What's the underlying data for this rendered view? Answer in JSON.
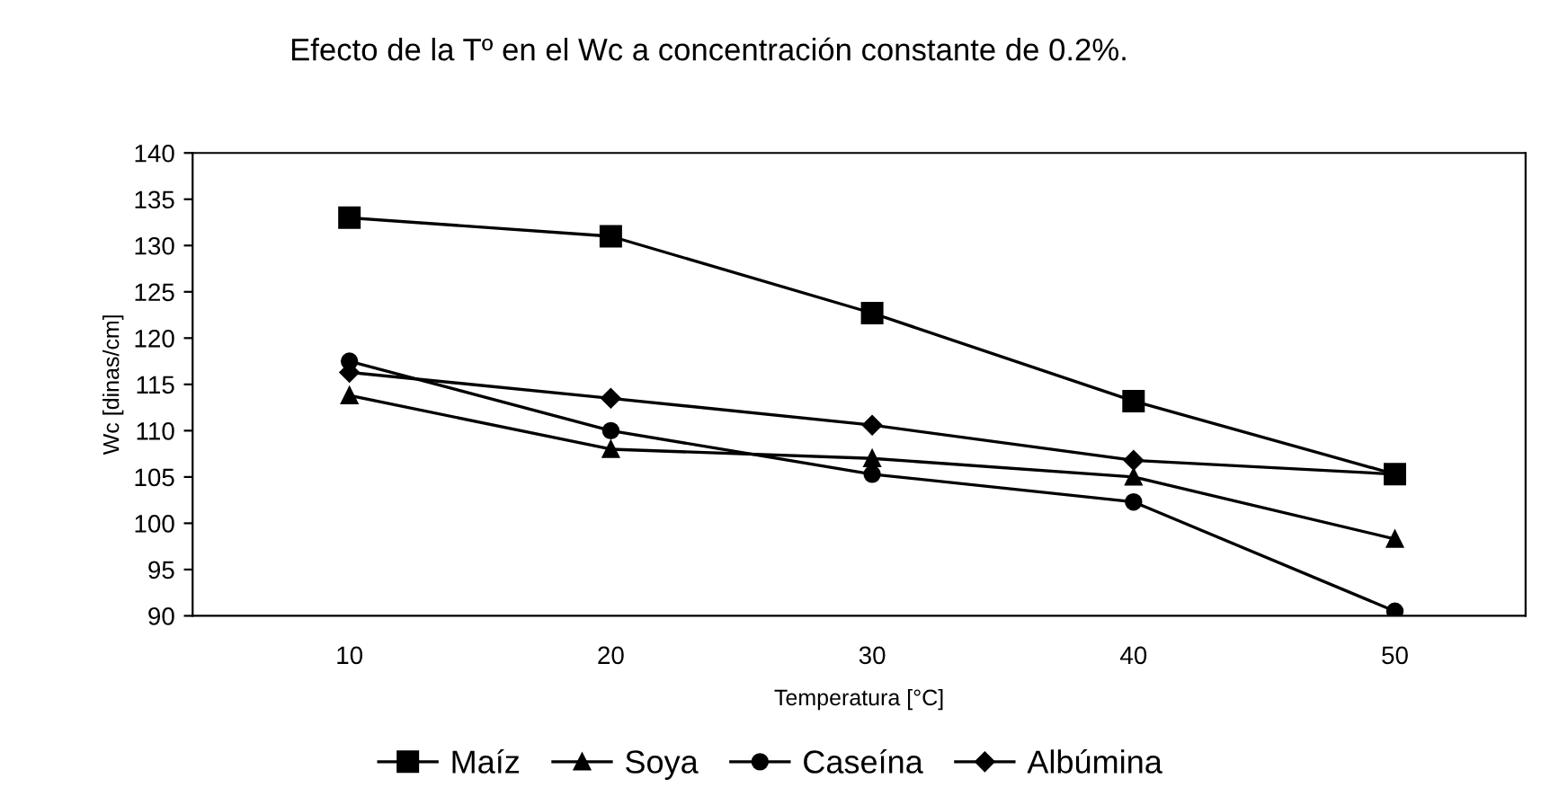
{
  "chart_data": {
    "type": "line",
    "title": "Efecto de la Tº en el Wc a concentración constante de 0.2%.",
    "xlabel": "Temperatura [°C]",
    "ylabel": "Wc [dinas/cm]",
    "categories": [
      "10",
      "20",
      "30",
      "40",
      "50"
    ],
    "series": [
      {
        "name": "Maíz",
        "color": "#000000",
        "marker": "square",
        "values": [
          133,
          131,
          122.7,
          113.2,
          105.3
        ]
      },
      {
        "name": "Soya",
        "color": "#000000",
        "marker": "triangle",
        "values": [
          113.8,
          108,
          107,
          105,
          98.3
        ]
      },
      {
        "name": "Caseína",
        "color": "#000000",
        "marker": "circle",
        "values": [
          117.5,
          110,
          105.3,
          102.3,
          90.5
        ]
      },
      {
        "name": "Albúmina",
        "color": "#000000",
        "marker": "diamond",
        "values": [
          116.3,
          113.5,
          110.6,
          106.8,
          105.3
        ]
      }
    ],
    "ylim": [
      90,
      140
    ],
    "yticks": [
      90,
      95,
      100,
      105,
      110,
      115,
      120,
      125,
      130,
      135,
      140
    ],
    "grid": false,
    "legend": "bottom",
    "line_style": "solid"
  }
}
